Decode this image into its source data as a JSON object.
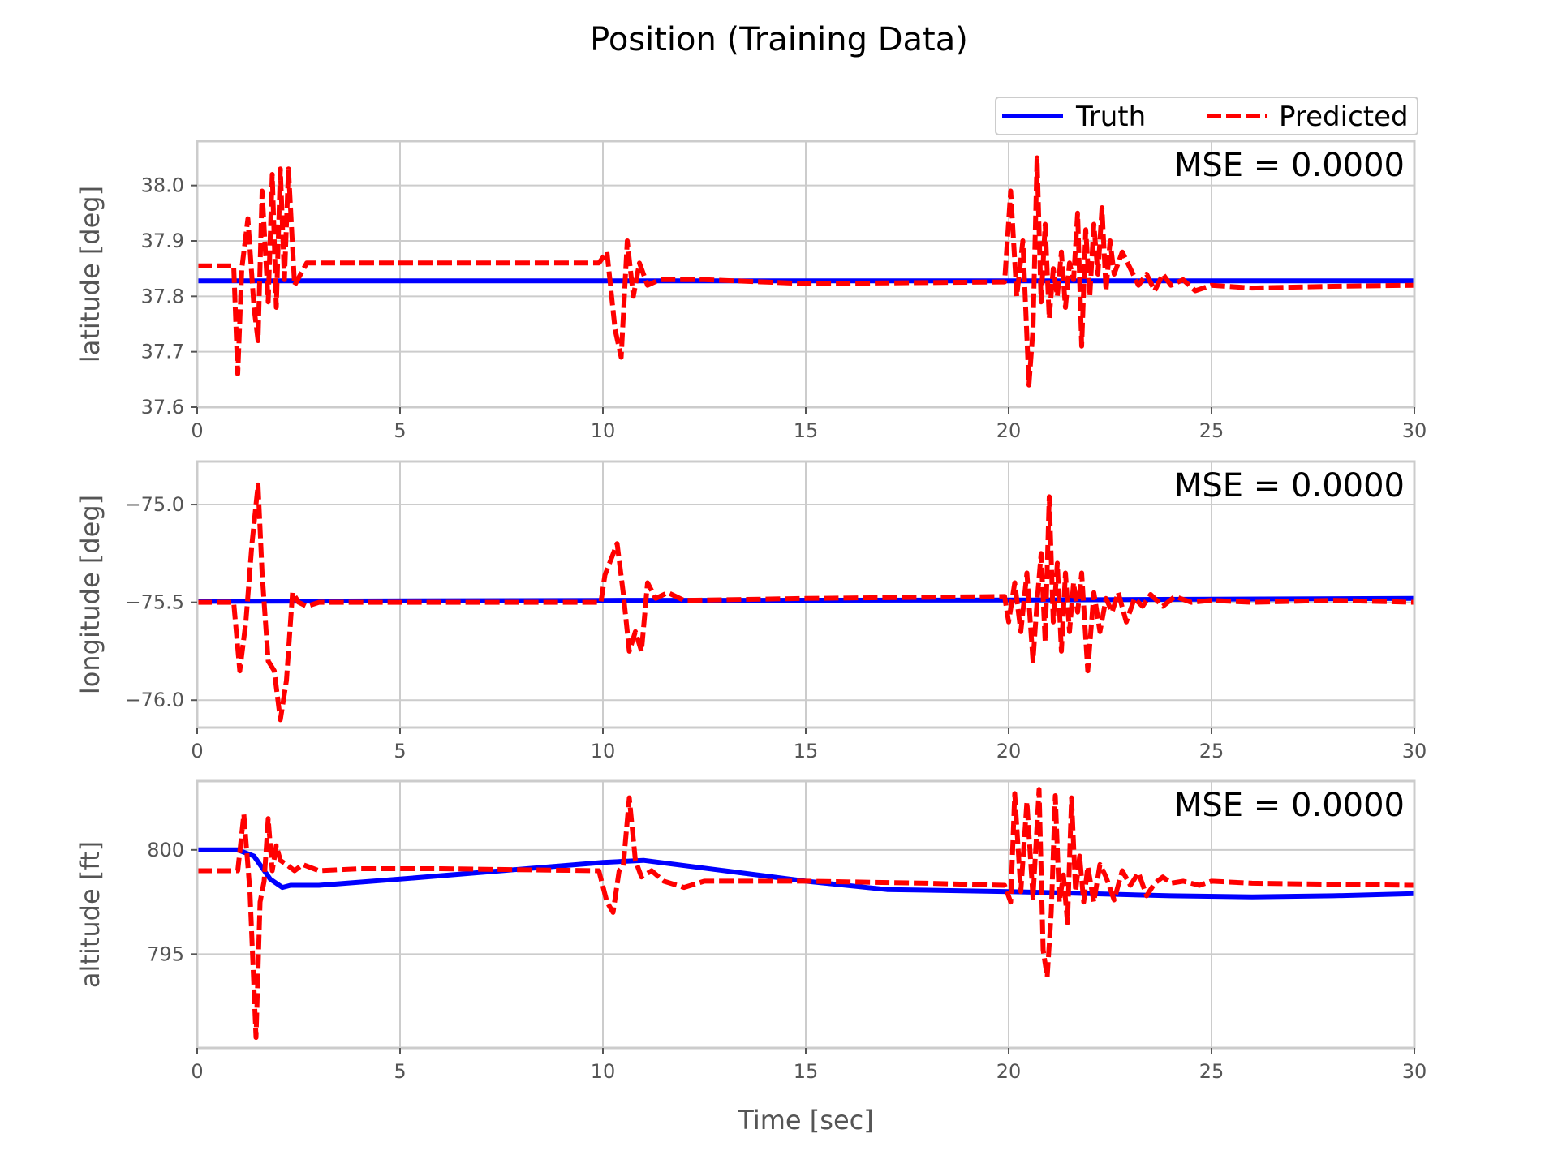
{
  "chart_data": {
    "title": "Position (Training Data)",
    "xlabel": "Time [sec]",
    "xlim": [
      0,
      30
    ],
    "xticks": [
      0,
      5,
      10,
      15,
      20,
      25,
      30
    ],
    "xtick_labels": [
      "0",
      "5",
      "10",
      "15",
      "20",
      "25",
      "30"
    ],
    "grid": true,
    "legend": {
      "placement": "top-right",
      "entries": [
        "Truth",
        "Predicted"
      ]
    },
    "colors": {
      "truth": "#0000ff",
      "predicted": "#ff0000",
      "grid": "#cccccc",
      "spine": "#cccccc"
    },
    "subplots": [
      {
        "type": "line",
        "ylabel": "latitude [deg]",
        "ylim": [
          37.6,
          38.08
        ],
        "yticks": [
          37.6,
          37.7,
          37.8,
          37.9,
          38.0
        ],
        "ytick_labels": [
          "37.6",
          "37.7",
          "37.8",
          "37.9",
          "38.0"
        ],
        "annotation": "MSE = 0.0000",
        "series": [
          {
            "name": "Truth",
            "style": "solid",
            "x": [
              0,
              30
            ],
            "y": [
              37.828,
              37.828
            ]
          },
          {
            "name": "Predicted",
            "style": "dashed",
            "x": [
              0,
              0.9,
              1.0,
              1.1,
              1.25,
              1.4,
              1.5,
              1.6,
              1.75,
              1.85,
              1.95,
              2.05,
              2.15,
              2.25,
              2.4,
              2.55,
              2.7,
              3.0,
              5.0,
              9.9,
              10.1,
              10.3,
              10.45,
              10.6,
              10.75,
              10.9,
              11.1,
              11.4,
              11.8,
              12.5,
              15.0,
              19.9,
              20.05,
              20.2,
              20.35,
              20.5,
              20.6,
              20.7,
              20.8,
              20.9,
              21.0,
              21.1,
              21.2,
              21.3,
              21.4,
              21.5,
              21.6,
              21.7,
              21.8,
              21.9,
              22.0,
              22.1,
              22.2,
              22.3,
              22.4,
              22.5,
              22.6,
              22.8,
              23.0,
              23.2,
              23.4,
              23.6,
              23.8,
              24.0,
              24.3,
              24.6,
              25.0,
              26.0,
              28.0,
              30.0
            ],
            "y": [
              37.855,
              37.855,
              37.66,
              37.85,
              37.94,
              37.78,
              37.72,
              37.99,
              37.79,
              38.02,
              37.78,
              38.03,
              37.83,
              38.03,
              37.82,
              37.84,
              37.86,
              37.86,
              37.86,
              37.86,
              37.88,
              37.74,
              37.69,
              37.9,
              37.8,
              37.86,
              37.82,
              37.83,
              37.83,
              37.83,
              37.823,
              37.826,
              37.99,
              37.8,
              37.9,
              37.64,
              37.74,
              38.05,
              37.79,
              37.93,
              37.76,
              37.85,
              37.8,
              37.88,
              37.78,
              37.86,
              37.83,
              37.95,
              37.71,
              37.92,
              37.8,
              37.93,
              37.84,
              37.96,
              37.81,
              37.9,
              37.84,
              37.88,
              37.85,
              37.82,
              37.84,
              37.81,
              37.84,
              37.82,
              37.83,
              37.81,
              37.82,
              37.815,
              37.818,
              37.82
            ]
          }
        ]
      },
      {
        "type": "line",
        "ylabel": "longitude [deg]",
        "ylim": [
          -76.14,
          -74.78
        ],
        "yticks": [
          -76.0,
          -75.5,
          -75.0
        ],
        "ytick_labels": [
          "−76.0",
          "−75.5",
          "−75.0"
        ],
        "annotation": "MSE = 0.0000",
        "series": [
          {
            "name": "Truth",
            "style": "solid",
            "x": [
              0,
              10,
              20,
              30
            ],
            "y": [
              -75.495,
              -75.49,
              -75.488,
              -75.48
            ]
          },
          {
            "name": "Predicted",
            "style": "dashed",
            "x": [
              0,
              0.9,
              1.05,
              1.2,
              1.35,
              1.5,
              1.6,
              1.75,
              1.9,
              2.05,
              2.2,
              2.35,
              2.5,
              2.7,
              3.0,
              5.0,
              9.95,
              10.05,
              10.2,
              10.35,
              10.5,
              10.65,
              10.8,
              10.95,
              11.1,
              11.3,
              11.6,
              12.0,
              15.0,
              19.9,
              20.0,
              20.15,
              20.3,
              20.45,
              20.6,
              20.7,
              20.8,
              20.9,
              21.0,
              21.1,
              21.2,
              21.3,
              21.4,
              21.5,
              21.6,
              21.7,
              21.8,
              21.95,
              22.1,
              22.25,
              22.4,
              22.55,
              22.7,
              22.9,
              23.1,
              23.3,
              23.5,
              23.8,
              24.1,
              24.5,
              25.0,
              26.0,
              28.0,
              30.0
            ],
            "y": [
              -75.5,
              -75.5,
              -75.85,
              -75.6,
              -75.2,
              -74.9,
              -75.35,
              -75.8,
              -75.85,
              -76.1,
              -75.9,
              -75.45,
              -75.5,
              -75.52,
              -75.5,
              -75.5,
              -75.5,
              -75.36,
              -75.28,
              -75.2,
              -75.45,
              -75.75,
              -75.65,
              -75.75,
              -75.4,
              -75.48,
              -75.45,
              -75.49,
              -75.48,
              -75.47,
              -75.6,
              -75.4,
              -75.65,
              -75.35,
              -75.8,
              -75.5,
              -75.25,
              -75.7,
              -74.96,
              -75.6,
              -75.3,
              -75.75,
              -75.35,
              -75.65,
              -75.4,
              -75.55,
              -75.35,
              -75.85,
              -75.45,
              -75.65,
              -75.48,
              -75.55,
              -75.45,
              -75.6,
              -75.48,
              -75.52,
              -75.46,
              -75.52,
              -75.47,
              -75.5,
              -75.49,
              -75.5,
              -75.49,
              -75.5
            ]
          }
        ]
      },
      {
        "type": "line",
        "ylabel": "altitude [ft]",
        "ylim": [
          790.5,
          803.3
        ],
        "yticks": [
          795,
          800
        ],
        "ytick_labels": [
          "795",
          "800"
        ],
        "annotation": "MSE = 0.0000",
        "series": [
          {
            "name": "Truth",
            "style": "solid",
            "x": [
              0,
              1.0,
              1.4,
              1.8,
              2.1,
              2.3,
              3.0,
              5.0,
              7.5,
              10.0,
              11.0,
              13.0,
              15.0,
              17.0,
              20.0,
              22.0,
              24.0,
              26.0,
              28.0,
              30.0
            ],
            "y": [
              800.0,
              800.0,
              799.7,
              798.6,
              798.2,
              798.3,
              798.3,
              798.6,
              799.0,
              799.4,
              799.5,
              799.0,
              798.5,
              798.1,
              798.0,
              797.9,
              797.8,
              797.75,
              797.8,
              797.9
            ]
          },
          {
            "name": "Predicted",
            "style": "dashed",
            "x": [
              0,
              1.0,
              1.15,
              1.3,
              1.45,
              1.55,
              1.65,
              1.75,
              1.85,
              1.95,
              2.05,
              2.2,
              2.4,
              2.6,
              3.0,
              4.0,
              6.0,
              9.9,
              10.1,
              10.25,
              10.4,
              10.5,
              10.65,
              10.8,
              10.95,
              11.2,
              11.5,
              12.0,
              12.5,
              13.0,
              15.0,
              18.0,
              19.9,
              20.05,
              20.15,
              20.3,
              20.45,
              20.6,
              20.75,
              20.85,
              20.95,
              21.05,
              21.15,
              21.25,
              21.35,
              21.45,
              21.55,
              21.65,
              21.75,
              21.85,
              21.95,
              22.1,
              22.25,
              22.4,
              22.6,
              22.8,
              23.0,
              23.2,
              23.4,
              23.6,
              23.8,
              24.0,
              24.3,
              24.7,
              25.0,
              26.0,
              28.0,
              30.0
            ],
            "y": [
              799.0,
              799.0,
              801.7,
              798.0,
              791.0,
              797.5,
              798.5,
              801.5,
              799.0,
              800.2,
              799.5,
              799.3,
              799.0,
              799.3,
              799.0,
              799.1,
              799.1,
              799.0,
              797.5,
              797.0,
              799.0,
              799.2,
              802.5,
              799.5,
              798.7,
              799.0,
              798.5,
              798.2,
              798.5,
              798.5,
              798.5,
              798.4,
              798.3,
              797.5,
              802.7,
              798.0,
              802.3,
              797.7,
              802.9,
              795.2,
              793.9,
              797.0,
              802.6,
              797.5,
              798.8,
              796.5,
              802.5,
              798.0,
              799.7,
              797.5,
              799.2,
              797.5,
              799.3,
              798.7,
              797.6,
              799.0,
              798.3,
              798.9,
              797.8,
              798.4,
              798.7,
              798.4,
              798.5,
              798.3,
              798.5,
              798.4,
              798.35,
              798.3
            ]
          }
        ]
      }
    ]
  }
}
